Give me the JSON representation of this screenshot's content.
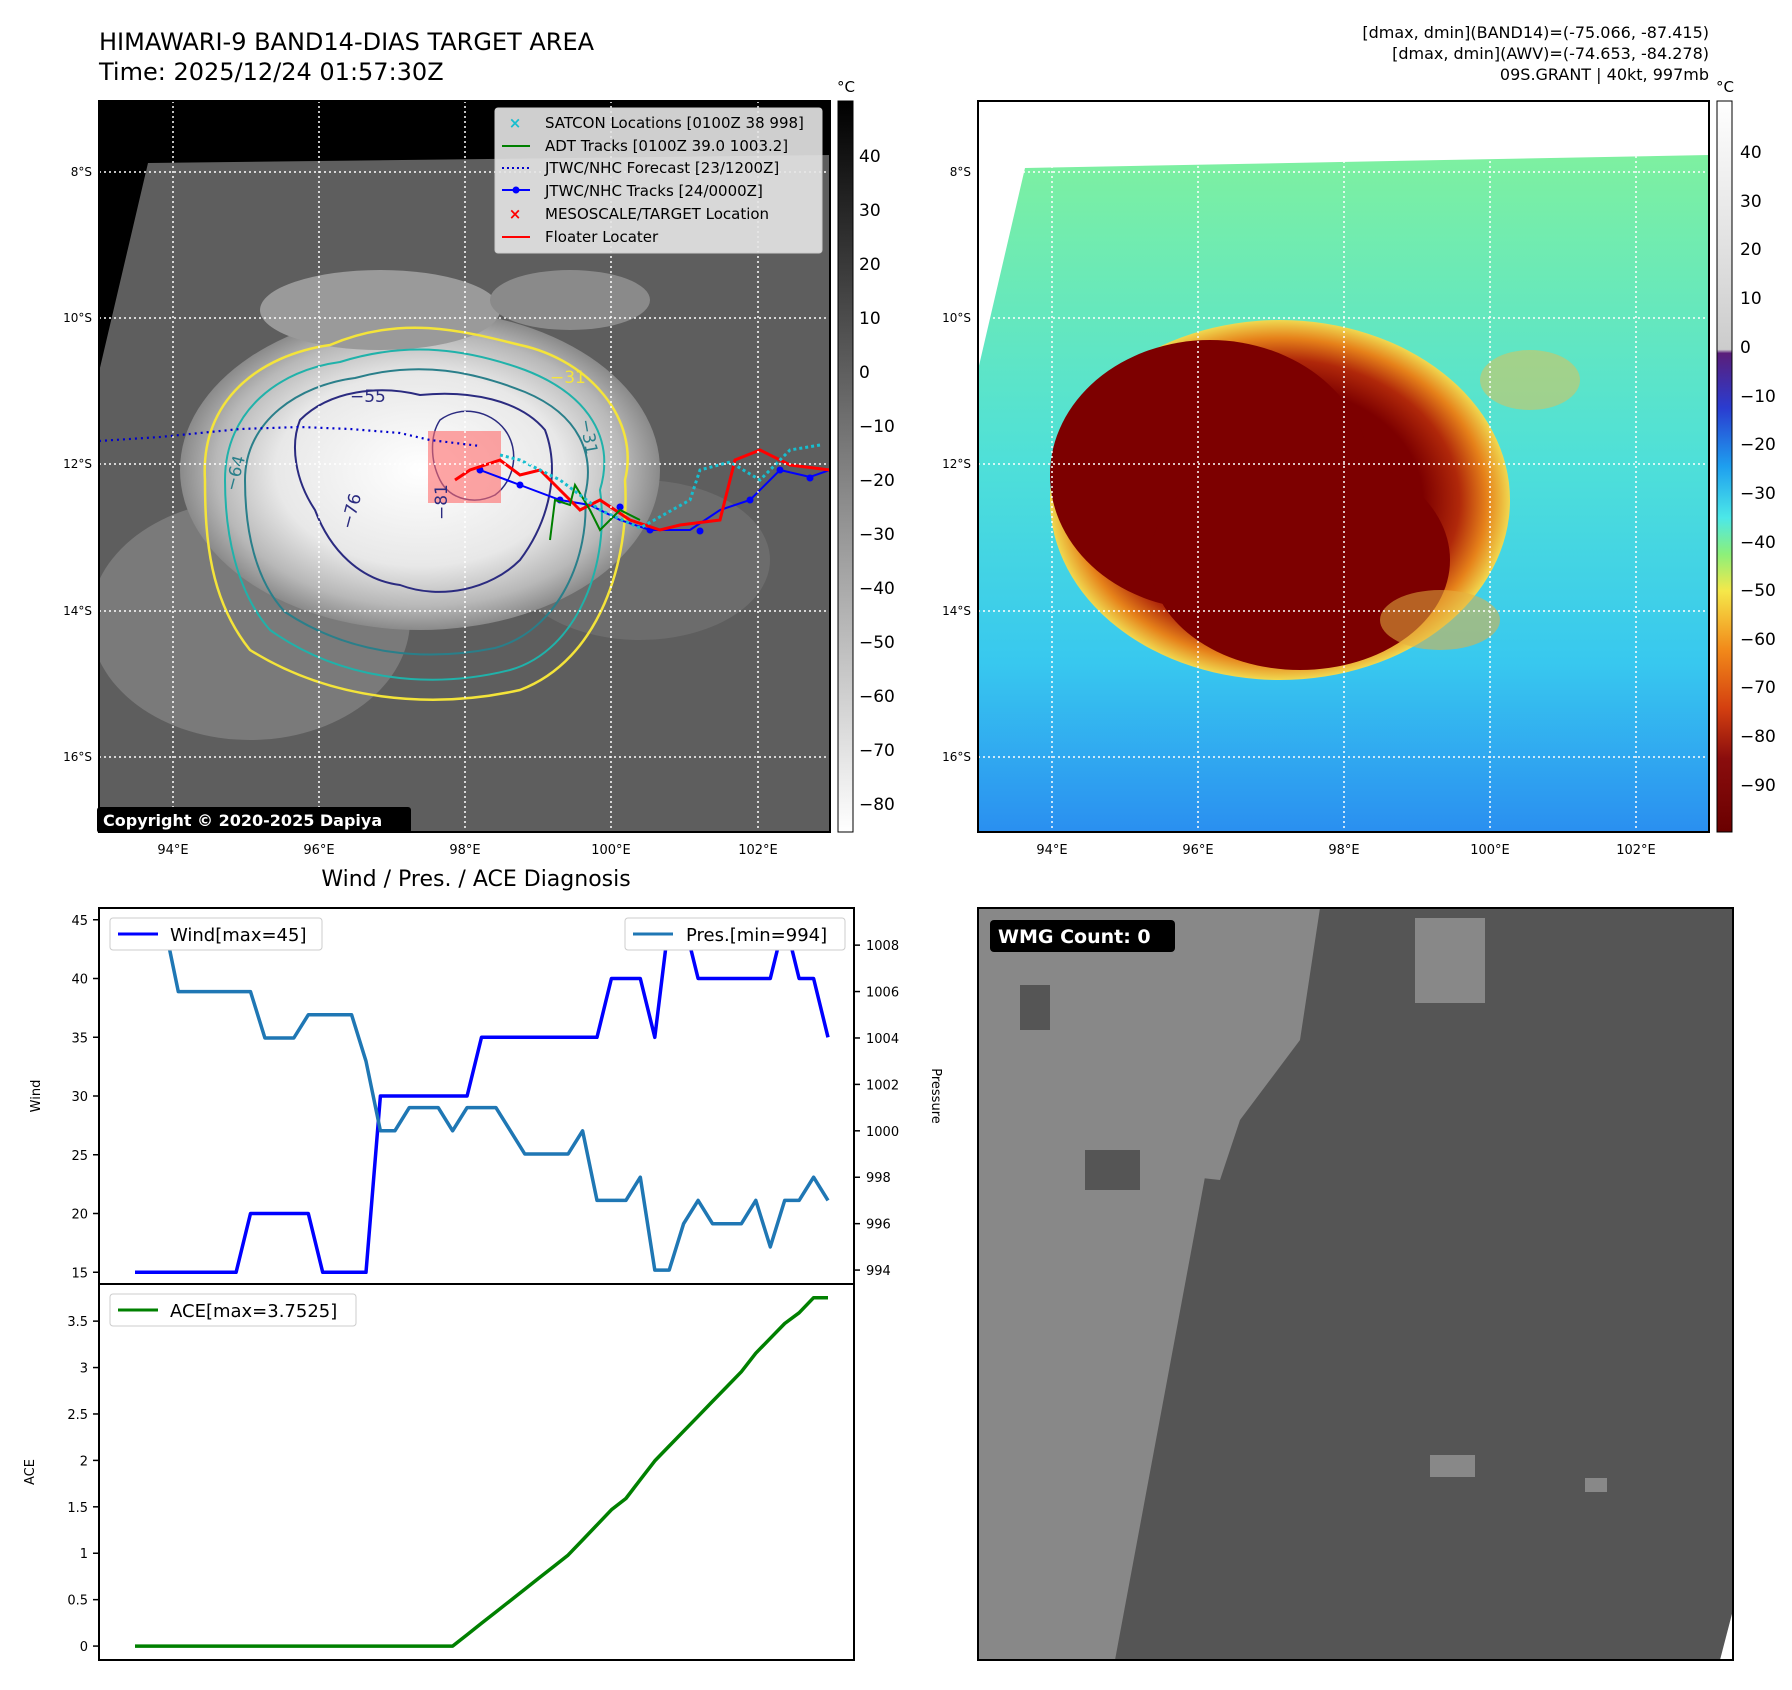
{
  "header": {
    "title": "HIMAWARI-9 BAND14-DIAS TARGET AREA",
    "time": "Time: 2025/12/24 01:57:30Z",
    "stats_band14": "[dmax, dmin](BAND14)=(-75.066, -87.415)",
    "stats_awv": "[dmax, dmin](AWV)=(-74.653, -84.278)",
    "storm_info": "09S.GRANT | 40kt, 997mb"
  },
  "map_common": {
    "lat_labels": [
      "8°S",
      "10°S",
      "12°S",
      "14°S",
      "16°S"
    ],
    "lon_labels": [
      "94°E",
      "96°E",
      "98°E",
      "100°E",
      "102°E"
    ]
  },
  "ir_panel": {
    "copyright": "Copyright © 2020-2025 Dapiya",
    "colorbar_unit": "°C",
    "colorbar_ticks": [
      "40",
      "30",
      "20",
      "10",
      "0",
      "−10",
      "−20",
      "−30",
      "−40",
      "−50",
      "−60",
      "−70",
      "−80"
    ],
    "contour_labels": [
      "−31",
      "−55",
      "−64",
      "−76",
      "−81",
      "−31"
    ],
    "legend": [
      {
        "label": "SATCON Locations [0100Z 38 998]",
        "color": "#17becf",
        "kind": "x"
      },
      {
        "label": "ADT Tracks [0100Z 39.0 1003.2]",
        "color": "#008000",
        "kind": "line"
      },
      {
        "label": "JTWC/NHC Forecast [23/1200Z]",
        "color": "#0000cc",
        "kind": "dotted"
      },
      {
        "label": "JTWC/NHC Tracks [24/0000Z]",
        "color": "#0000ff",
        "kind": "line-dot"
      },
      {
        "label": "MESOSCALE/TARGET Location",
        "color": "#ff0000",
        "kind": "x"
      },
      {
        "label": "Floater Locater",
        "color": "#ff0000",
        "kind": "line"
      }
    ]
  },
  "awv_panel": {
    "colorbar_unit": "°C",
    "colorbar_ticks": [
      "40",
      "30",
      "20",
      "10",
      "0",
      "−10",
      "−20",
      "−30",
      "−40",
      "−50",
      "−60",
      "−70",
      "−80",
      "−90"
    ]
  },
  "diagnosis": {
    "title": "Wind / Pres. / ACE Diagnosis",
    "wind_ylabel": "Wind",
    "pres_ylabel": "Pressure",
    "ace_ylabel": "ACE",
    "wind_legend": "Wind[max=45]",
    "pres_legend": "Pres.[min=994]",
    "ace_legend": "ACE[max=3.7525]"
  },
  "wmg_panel": {
    "label": "WMG Count: 0"
  },
  "colors": {
    "wind": "#0000ff",
    "pressure": "#1f77b4",
    "ace": "#008000",
    "legend_label_bg": "#000000"
  },
  "chart_data": [
    {
      "type": "line",
      "title": "Wind / Pres. / ACE Diagnosis",
      "x": [
        0,
        1,
        2,
        3,
        4,
        5,
        6,
        7,
        8,
        9,
        10,
        11,
        12,
        13,
        14,
        15,
        16,
        17,
        18,
        19,
        20,
        21,
        22,
        23,
        24,
        25,
        26,
        27,
        28,
        29,
        30,
        31,
        32,
        33,
        34,
        35,
        36,
        37,
        38,
        39,
        40,
        41,
        42,
        43,
        44,
        45,
        46,
        47,
        48
      ],
      "ylabel": "Wind",
      "ylim": [
        14,
        46
      ],
      "yticks": [
        15,
        20,
        25,
        30,
        35,
        40,
        45
      ],
      "series": [
        {
          "name": "Wind[max=45]",
          "axis": "left",
          "values": [
            15,
            15,
            15,
            15,
            15,
            15,
            15,
            15,
            20,
            20,
            20,
            20,
            20,
            15,
            15,
            15,
            15,
            30,
            30,
            30,
            30,
            30,
            30,
            30,
            35,
            35,
            35,
            35,
            35,
            35,
            35,
            35,
            35,
            40,
            40,
            40,
            35,
            45,
            45,
            40,
            40,
            40,
            40,
            40,
            40,
            45,
            40,
            40,
            35
          ]
        },
        {
          "name": "Pres.[min=994]",
          "axis": "right",
          "values": [
            1009,
            1009,
            1009,
            1006,
            1006,
            1006,
            1006,
            1006,
            1006,
            1004,
            1004,
            1004,
            1005,
            1005,
            1005,
            1005,
            1003,
            1000,
            1000,
            1001,
            1001,
            1001,
            1000,
            1001,
            1001,
            1001,
            1000,
            999,
            999,
            999,
            999,
            1000,
            997,
            997,
            997,
            998,
            994,
            994,
            996,
            997,
            996,
            996,
            996,
            997,
            995,
            997,
            997,
            998,
            997
          ]
        }
      ],
      "y2label": "Pressure",
      "y2lim": [
        993.4,
        1009.6
      ],
      "y2ticks": [
        994,
        996,
        998,
        1000,
        1002,
        1004,
        1006,
        1008
      ]
    },
    {
      "type": "line",
      "title": "",
      "x": [
        0,
        1,
        2,
        3,
        4,
        5,
        6,
        7,
        8,
        9,
        10,
        11,
        12,
        13,
        14,
        15,
        16,
        17,
        18,
        19,
        20,
        21,
        22,
        23,
        24,
        25,
        26,
        27,
        28,
        29,
        30,
        31,
        32,
        33,
        34,
        35,
        36,
        37,
        38,
        39,
        40,
        41,
        42,
        43,
        44,
        45,
        46,
        47,
        48
      ],
      "ylabel": "ACE",
      "ylim": [
        -0.15,
        3.9
      ],
      "yticks": [
        0.0,
        0.5,
        1.0,
        1.5,
        2.0,
        2.5,
        3.0,
        3.5
      ],
      "series": [
        {
          "name": "ACE[max=3.7525]",
          "values": [
            0,
            0,
            0,
            0,
            0,
            0,
            0,
            0,
            0,
            0,
            0,
            0,
            0,
            0,
            0,
            0,
            0,
            0,
            0,
            0,
            0,
            0,
            0,
            0.1225,
            0.245,
            0.3675,
            0.49,
            0.6125,
            0.735,
            0.8575,
            0.98,
            1.1425,
            1.305,
            1.4675,
            1.59,
            1.7925,
            1.995,
            2.155,
            2.315,
            2.475,
            2.635,
            2.795,
            2.955,
            3.155,
            3.315,
            3.475,
            3.59,
            3.7525,
            3.7525
          ]
        }
      ]
    }
  ]
}
